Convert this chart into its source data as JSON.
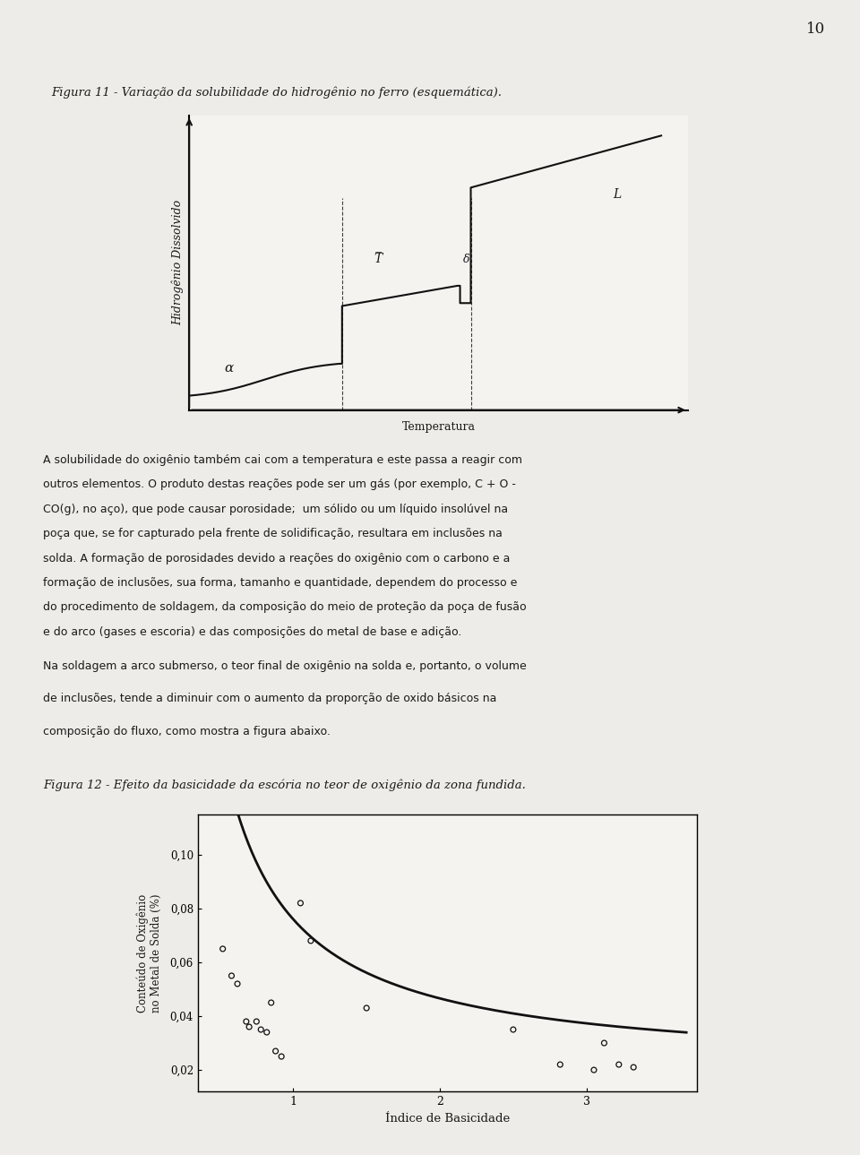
{
  "page_number": "10",
  "fig11_caption": "Figura 11 - Variação da solubilidade do hidrogênio no ferro (esquemática).",
  "fig11_ylabel": "Hidrogênio Dissolvido",
  "fig11_xlabel": "Temperatura",
  "fig11_label_alpha": "α",
  "fig11_label_T": "T̅",
  "fig11_label_delta": "δ",
  "fig11_label_L": "L",
  "paragraph1_line1": "A solubilidade do oxigênio também cai com a temperatura e este passa a reagir com",
  "paragraph1_line2": "outros elementos. O produto destas reações pode ser um gás (por exemplo, C + O -",
  "paragraph1_line3": "CO(g), no aço), que pode causar porosidade;  um sólido ou um líquido insolúvel na",
  "paragraph1_line4": "poça que, se for capturado pela frente de solidificação, resultara em inclusões na",
  "paragraph1_line5": "solda. A formação de porosidades devido a reações do oxigênio com o carbono e a",
  "paragraph1_line6": "formação de inclusões, sua forma, tamanho e quantidade, dependem do processo e",
  "paragraph1_line7": "do procedimento de soldagem, da composição do meio de proteção da poça de fusão",
  "paragraph1_line8": "e do arco (gases e escoria) e das composições do metal de base e adição.",
  "paragraph2_line1": "Na soldagem a arco submerso, o teor final de oxigênio na solda e, portanto, o volume",
  "paragraph2_line2": "de inclusões, tende a diminuir com o aumento da proporção de oxido básicos na",
  "paragraph2_line3": "composição do fluxo, como mostra a figura abaixo.",
  "fig12_caption": "Figura 12 - Efeito da basicidade da escória no teor de oxigênio da zona fundida.",
  "fig12_xlabel": "Índice de Basicidade",
  "fig12_ylabel_line1": "Conteúdo de Oxigênio",
  "fig12_ylabel_line2": "no Metal de Solda (%)",
  "fig12_yticks": [
    0.02,
    0.04,
    0.06,
    0.08,
    0.1
  ],
  "fig12_ytick_labels": [
    "0,02",
    "0,04",
    "0,06",
    "0,08",
    "0,10"
  ],
  "fig12_xticks": [
    1,
    2,
    3
  ],
  "fig12_scatter_x": [
    0.52,
    0.58,
    0.62,
    0.68,
    0.7,
    0.75,
    0.78,
    0.82,
    0.85,
    0.88,
    0.92,
    1.05,
    1.12,
    1.5,
    2.5,
    2.82,
    3.05,
    3.12,
    3.22,
    3.32
  ],
  "fig12_scatter_y": [
    0.065,
    0.055,
    0.052,
    0.038,
    0.036,
    0.038,
    0.035,
    0.034,
    0.045,
    0.027,
    0.025,
    0.082,
    0.068,
    0.043,
    0.035,
    0.022,
    0.02,
    0.03,
    0.022,
    0.021
  ],
  "bg_color": "#eeece8",
  "text_color": "#1a1a1a",
  "fig_color": "#f5f3f0",
  "line_color": "#111111"
}
